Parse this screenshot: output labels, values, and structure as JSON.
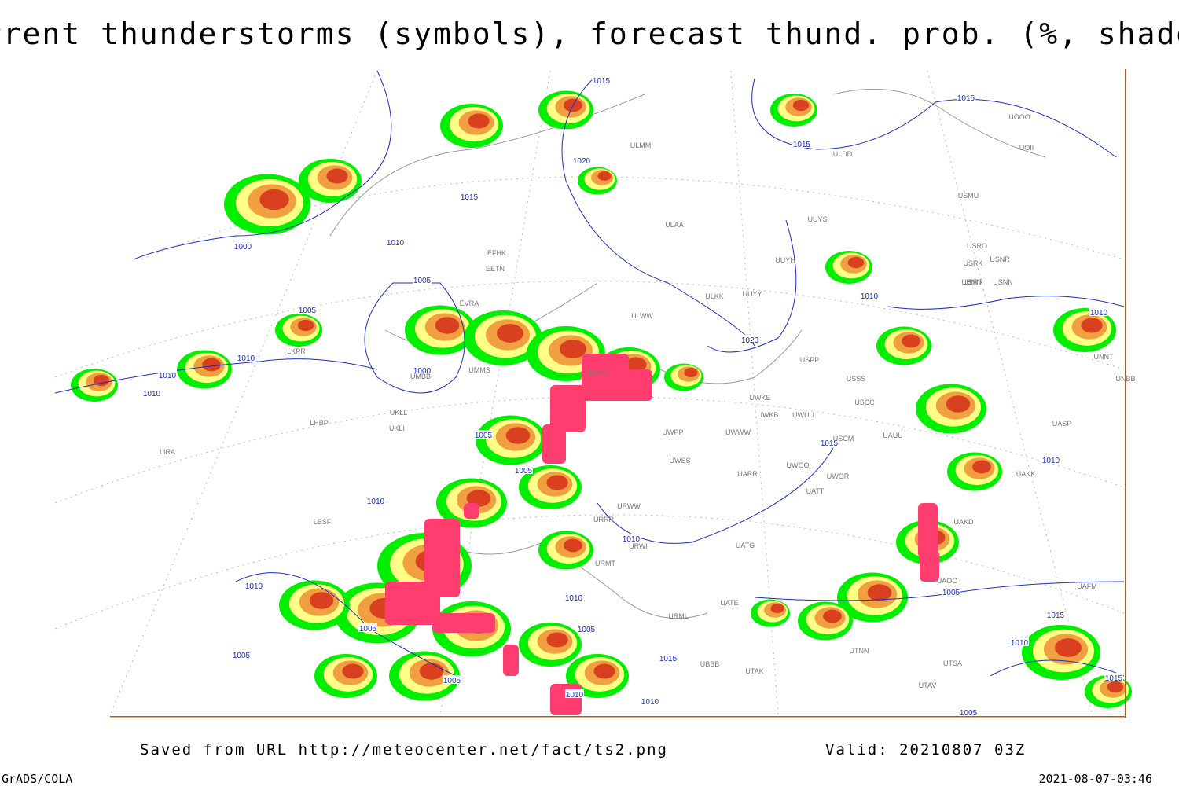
{
  "header": {
    "title": "Current thunderstorms (symbols), forecast thund. prob. (%, shaded)"
  },
  "footer": {
    "source": "Saved from URL http://meteocenter.net/fact/ts2.png",
    "valid": "Valid: 20210807 03Z",
    "software": "GrADS/COLA",
    "timestamp": "2021-08-07-03:46"
  },
  "isobar_labels": [
    1015,
    1015,
    1015,
    1020,
    1015,
    1010,
    1000,
    1005,
    1005,
    1010,
    1010,
    1020,
    1010,
    1010,
    1000,
    1010,
    1005,
    1015,
    1005,
    1010,
    1010,
    1010,
    1010,
    1005,
    1010,
    1005,
    1005,
    1015,
    1010,
    1005,
    1015,
    1005,
    1010,
    1015,
    1010,
    1005
  ],
  "station_labels": [
    "ULMM",
    "ULDD",
    "UOOO",
    "UOII",
    "USMU",
    "UUYS",
    "ULAA",
    "USRO",
    "USRK",
    "USNR",
    "UUYH",
    "USRR",
    "USNN",
    "ULKK",
    "UUYY",
    "ULWW",
    "EFHK",
    "EETN",
    "EVRA",
    "LKPR",
    "UNNT",
    "USPP",
    "USSS",
    "UNBB",
    "UWKE",
    "UWKB",
    "UWUU",
    "USCC",
    "UWWW",
    "UWPP",
    "USCM",
    "UAUU",
    "UASP",
    "UKLL",
    "UKLI",
    "LHBP",
    "LIRA",
    "UWSS",
    "UARR",
    "UWOO",
    "UWOR",
    "UATT",
    "UAKK",
    "URWW",
    "URRR",
    "LBSF",
    "UAKD",
    "URWI",
    "UATG",
    "URMT",
    "UAOO",
    "UATE",
    "URML",
    "UBBB",
    "UTAK",
    "UTSA",
    "UTAV",
    "UTNN",
    "UAFM",
    "UMMS",
    "UMBB",
    "UUWW",
    "USNN"
  ]
}
